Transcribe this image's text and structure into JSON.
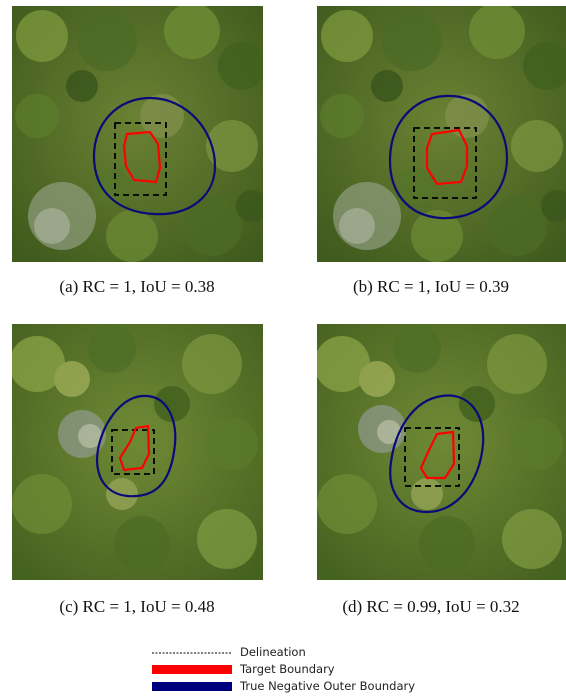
{
  "figure": {
    "panels": [
      {
        "id": "a",
        "caption": "(a)  RC = 1,  IoU = 0.38"
      },
      {
        "id": "b",
        "caption": "(b)  RC = 1,  IoU = 0.39"
      },
      {
        "id": "c",
        "caption": "(c)  RC = 1,  IoU = 0.48"
      },
      {
        "id": "d",
        "caption": "(d)  RC = 0.99,  IoU = 0.32"
      }
    ],
    "legend": [
      {
        "label": "Delineation",
        "style": "dashed",
        "color": "#000000"
      },
      {
        "label": "Target Boundary",
        "style": "solid",
        "color": "#ff0000"
      },
      {
        "label": "True Negative Outer Boundary",
        "style": "solid",
        "color": "#00007f"
      }
    ],
    "colors": {
      "target_boundary": "#ff0000",
      "outer_boundary": "#0a0a7a",
      "delineation": "#000000",
      "canopy_base": "#4f6a22"
    }
  }
}
